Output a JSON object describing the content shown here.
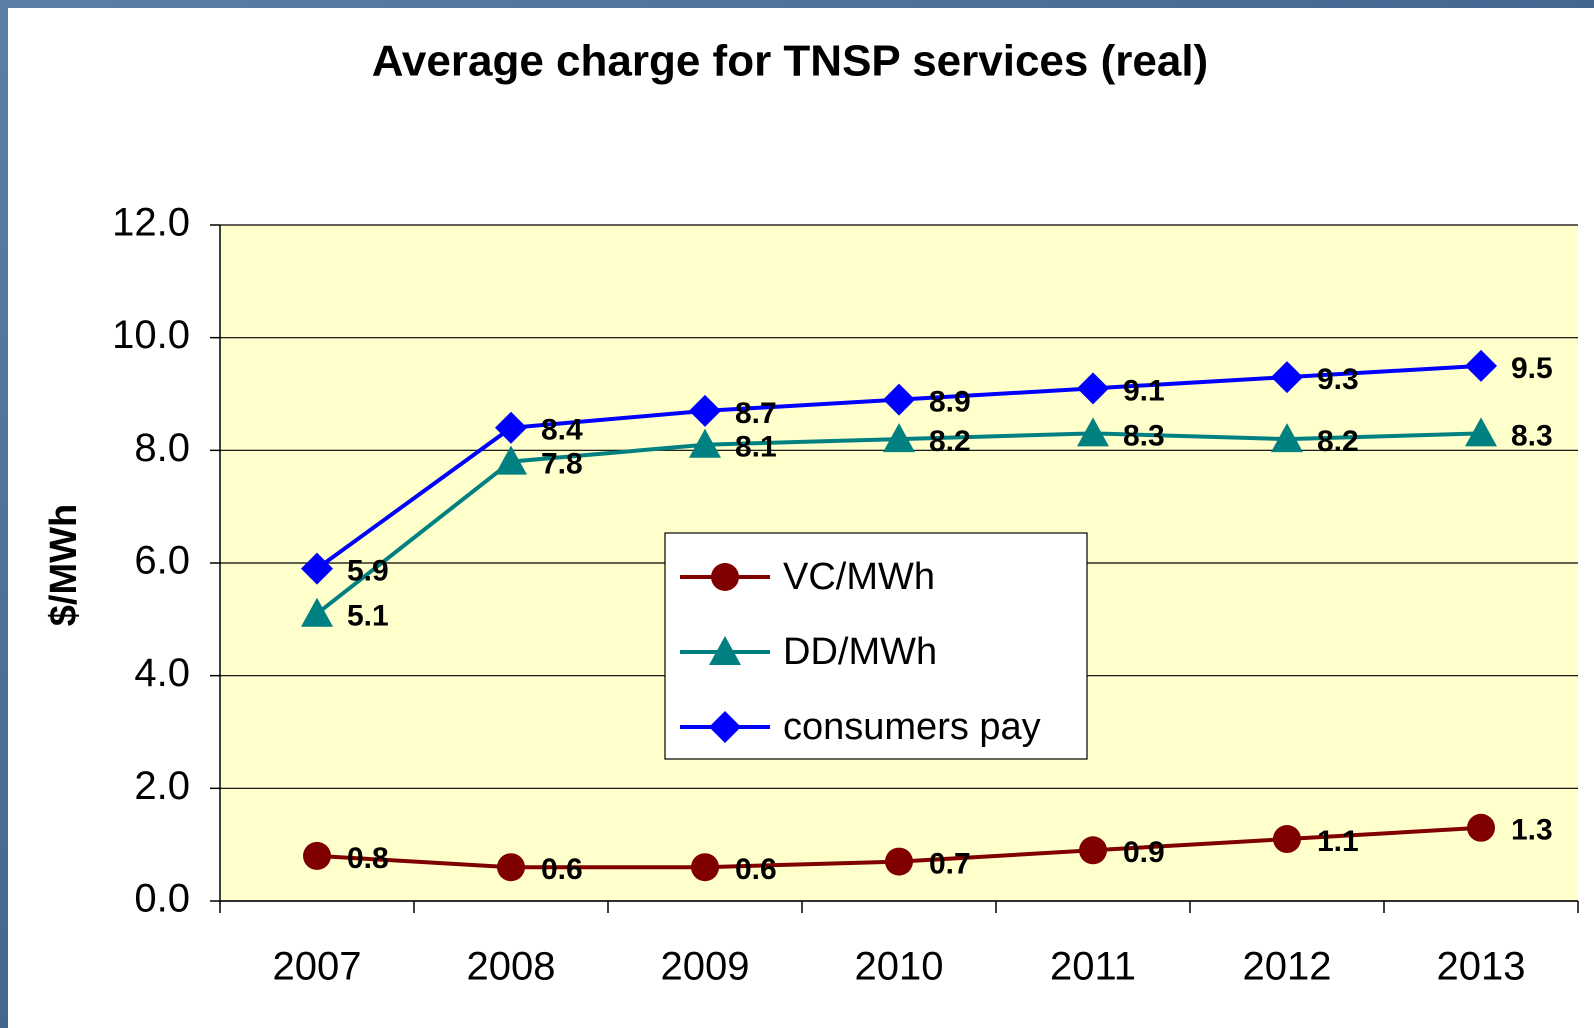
{
  "chart_data": {
    "type": "line",
    "title": "Average charge for TNSP services (real)",
    "y_label": "$/MWh",
    "categories": [
      "2007",
      "2008",
      "2009",
      "2010",
      "2011",
      "2012",
      "2013"
    ],
    "series": [
      {
        "name": "VC/MWh",
        "color": "#800000",
        "marker": "circle",
        "values": [
          0.8,
          0.6,
          0.6,
          0.7,
          0.9,
          1.1,
          1.3
        ]
      },
      {
        "name": "DD/MWh",
        "color": "#008080",
        "marker": "triangle",
        "values": [
          5.1,
          7.8,
          8.1,
          8.2,
          8.3,
          8.2,
          8.3
        ]
      },
      {
        "name": "consumers pay",
        "color": "#0000ff",
        "marker": "diamond",
        "values": [
          5.9,
          8.4,
          8.7,
          8.9,
          9.1,
          9.3,
          9.5
        ]
      }
    ],
    "ylim": [
      0,
      12
    ],
    "yticks": [
      {
        "value": 0,
        "label": "0.0"
      },
      {
        "value": 2,
        "label": "2.0"
      },
      {
        "value": 4,
        "label": "4.0"
      },
      {
        "value": 6,
        "label": "6.0"
      },
      {
        "value": 8,
        "label": "8.0"
      },
      {
        "value": 10,
        "label": "10.0"
      },
      {
        "value": 12,
        "label": "12.0"
      }
    ],
    "grid": true,
    "legend": "center",
    "plot_background": "#ffffcc"
  }
}
